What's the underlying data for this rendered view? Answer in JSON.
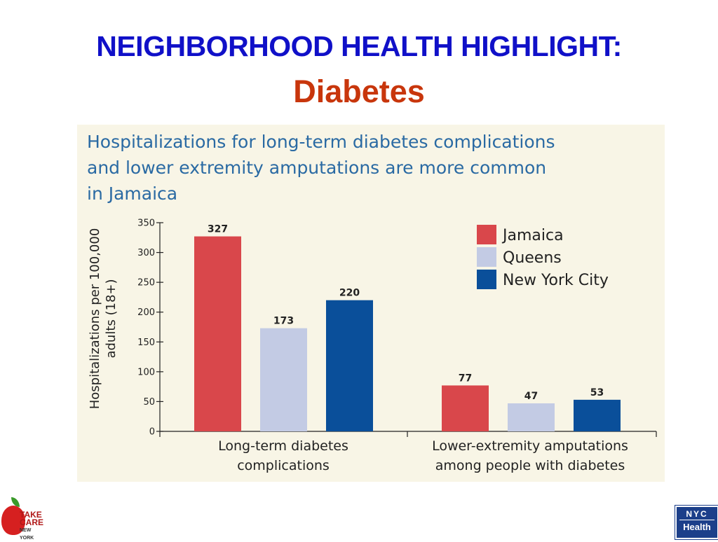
{
  "slide": {
    "title": "NEIGHBORHOOD HEALTH HIGHLIGHT:",
    "subtitle": "Diabetes"
  },
  "chart_headline": [
    "Hospitalizations for long-term diabetes complications",
    "and lower extremity amputations are more common",
    "in Jamaica"
  ],
  "chart_data": {
    "type": "bar",
    "title": "Hospitalizations for long-term diabetes complications and lower extremity amputations are more common in Jamaica",
    "ylabel_lines": [
      "Hospitalizations per 100,000",
      "adults (18+)"
    ],
    "ylim": [
      0,
      350
    ],
    "yticks": [
      0,
      50,
      100,
      150,
      200,
      250,
      300,
      350
    ],
    "grid": false,
    "legend_position": "top-right",
    "categories": [
      [
        "Long-term diabetes",
        "complications"
      ],
      [
        "Lower-extremity amputations",
        "among people with diabetes"
      ]
    ],
    "series": [
      {
        "name": "Jamaica",
        "color": "#d9474b",
        "values": [
          327,
          77
        ]
      },
      {
        "name": "Queens",
        "color": "#c3cbe4",
        "values": [
          173,
          47
        ]
      },
      {
        "name": "New York City",
        "color": "#0a4f9a",
        "values": [
          220,
          53
        ]
      }
    ]
  },
  "logos": {
    "take_care": {
      "line1": "TAKE",
      "line2": "CARE",
      "line3": "NEW YORK"
    },
    "nyc_health": {
      "line1": "NYC",
      "line2": "Health"
    }
  }
}
